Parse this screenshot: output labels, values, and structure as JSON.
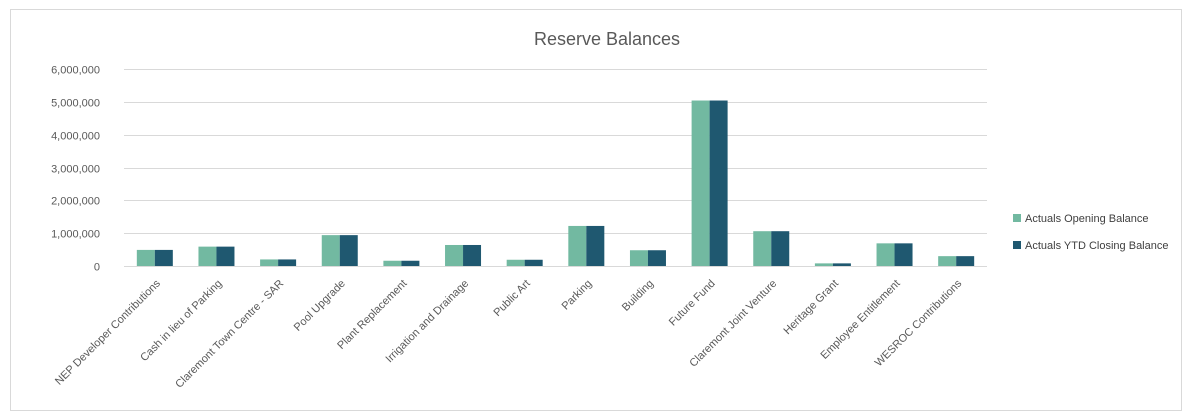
{
  "chart_data": {
    "type": "bar",
    "title": "Reserve Balances",
    "xlabel": "",
    "ylabel": "",
    "ylim": [
      0,
      6000000
    ],
    "yticks": [
      0,
      1000000,
      2000000,
      3000000,
      4000000,
      5000000,
      6000000
    ],
    "ytick_labels": [
      "0",
      "1,000,000",
      "2,000,000",
      "3,000,000",
      "4,000,000",
      "5,000,000",
      "6,000,000"
    ],
    "grid": true,
    "legend_position": "right",
    "categories": [
      "NEP Developer Contributions",
      "Cash in lieu of Parking",
      "Claremont Town Centre - SAR",
      "Pool Upgrade",
      "Plant Replacement",
      "Irrigation and Drainage",
      "Public Art",
      "Parking",
      "Building",
      "Future Fund",
      "Claremont Joint Venture",
      "Heritage Grant",
      "Employee Entitlement",
      "WESROC Contributions"
    ],
    "series": [
      {
        "name": "Actuals Opening Balance",
        "color": "#72b9a1",
        "values": [
          490000,
          590000,
          200000,
          940000,
          160000,
          640000,
          190000,
          1220000,
          480000,
          5040000,
          1060000,
          80000,
          690000,
          300000
        ]
      },
      {
        "name": "Actuals YTD Closing Balance",
        "color": "#1f5870",
        "values": [
          490000,
          590000,
          200000,
          940000,
          160000,
          640000,
          190000,
          1220000,
          480000,
          5040000,
          1060000,
          80000,
          690000,
          300000
        ]
      }
    ]
  }
}
